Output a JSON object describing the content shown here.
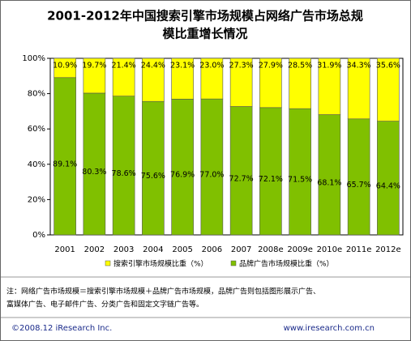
{
  "chart_data": {
    "type": "stacked-bar",
    "title": [
      "2001-2012年中国搜索引擎市场规模占网络广告市场总规",
      "模比重增长情况"
    ],
    "categories": [
      "2001",
      "2002",
      "2003",
      "2004",
      "2005",
      "2006",
      "2007",
      "2008e",
      "2009e",
      "2010e",
      "2011e",
      "2012e"
    ],
    "series": [
      {
        "name": "搜索引擎市场规模比重（%）",
        "color": "#ffff00",
        "values": [
          10.9,
          19.7,
          21.4,
          24.4,
          23.1,
          23.0,
          27.3,
          27.9,
          28.5,
          31.9,
          34.3,
          35.6
        ],
        "value_labels": [
          "10.9%",
          "19.7%",
          "21.4%",
          "24.4%",
          "23.1%",
          "23.0%",
          "27.3%",
          "27.9%",
          "28.5%",
          "31.9%",
          "34.3%",
          "35.6%"
        ]
      },
      {
        "name": "品牌广告市场规模比重（%）",
        "color": "#80c000",
        "values": [
          89.1,
          80.3,
          78.6,
          75.6,
          76.9,
          77.0,
          72.7,
          72.1,
          71.5,
          68.1,
          65.7,
          64.4
        ],
        "value_labels": [
          "89.1%",
          "80.3%",
          "78.6%",
          "75.6%",
          "76.9%",
          "77.0%",
          "72.7%",
          "72.1%",
          "71.5%",
          "68.1%",
          "65.7%",
          "64.4%"
        ]
      }
    ],
    "stack_order": [
      1,
      0
    ],
    "ylim": [
      0,
      100
    ],
    "yticks": [
      {
        "value": 0,
        "label": "0%"
      },
      {
        "value": 20,
        "label": "20%"
      },
      {
        "value": 40,
        "label": "40%"
      },
      {
        "value": 60,
        "label": "60%"
      },
      {
        "value": 80,
        "label": "80%"
      },
      {
        "value": 100,
        "label": "100%"
      }
    ]
  },
  "note": [
    "注：网络广告市场规模＝搜索引擎市场规模＋品牌广告市场规模，品牌广告则包括图形展示广告、",
    "富媒体广告、电子邮件广告、分类广告和固定文字链广告等。"
  ],
  "footer": {
    "left": "©2008.12 iResearch Inc.",
    "right": "www.iresearch.com.cn"
  }
}
